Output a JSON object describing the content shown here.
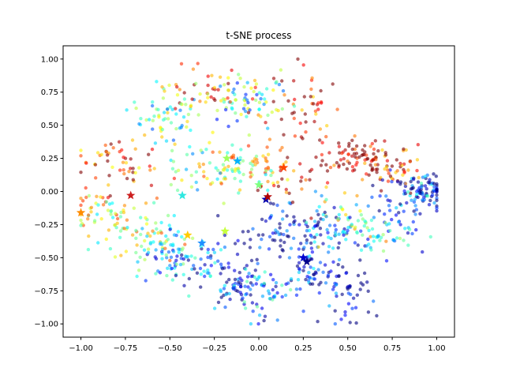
{
  "chart_data": {
    "type": "scatter",
    "title": "t-SNE process",
    "xlabel": "",
    "ylabel": "",
    "xlim": [
      -1.1,
      1.1
    ],
    "ylim": [
      -1.1,
      1.1
    ],
    "x_ticks": [
      "−1.00",
      "−0.75",
      "−0.50",
      "−0.25",
      "0.00",
      "0.25",
      "0.50",
      "0.75",
      "1.00"
    ],
    "y_ticks": [
      "−1.00",
      "−0.75",
      "−0.50",
      "−0.25",
      "0.00",
      "0.25",
      "0.50",
      "0.75",
      "1.00"
    ],
    "grid": false,
    "colormap": "jet",
    "point_alpha": 0.6,
    "point_count": 1300,
    "centroids": [
      {
        "x": -1.0,
        "y": -0.16,
        "color": "#ff8c00"
      },
      {
        "x": -0.72,
        "y": -0.03,
        "color": "#cc1f1f"
      },
      {
        "x": -0.43,
        "y": -0.03,
        "color": "#2ee8e0"
      },
      {
        "x": -0.4,
        "y": -0.33,
        "color": "#ffcc00"
      },
      {
        "x": -0.32,
        "y": -0.39,
        "color": "#1e90ff"
      },
      {
        "x": -0.19,
        "y": -0.3,
        "color": "#c6ff3c"
      },
      {
        "x": -0.18,
        "y": 0.25,
        "color": "#a0ff60"
      },
      {
        "x": -0.12,
        "y": 0.23,
        "color": "#00b0ff"
      },
      {
        "x": 0.0,
        "y": 0.05,
        "color": "#7fff7f"
      },
      {
        "x": 0.04,
        "y": -0.06,
        "color": "#0000b0"
      },
      {
        "x": 0.05,
        "y": -0.04,
        "color": "#b00000"
      },
      {
        "x": 0.14,
        "y": 0.18,
        "color": "#ff4500"
      },
      {
        "x": 0.25,
        "y": -0.5,
        "color": "#0000cd"
      },
      {
        "x": 0.27,
        "y": -0.53,
        "color": "#00008b"
      }
    ]
  }
}
